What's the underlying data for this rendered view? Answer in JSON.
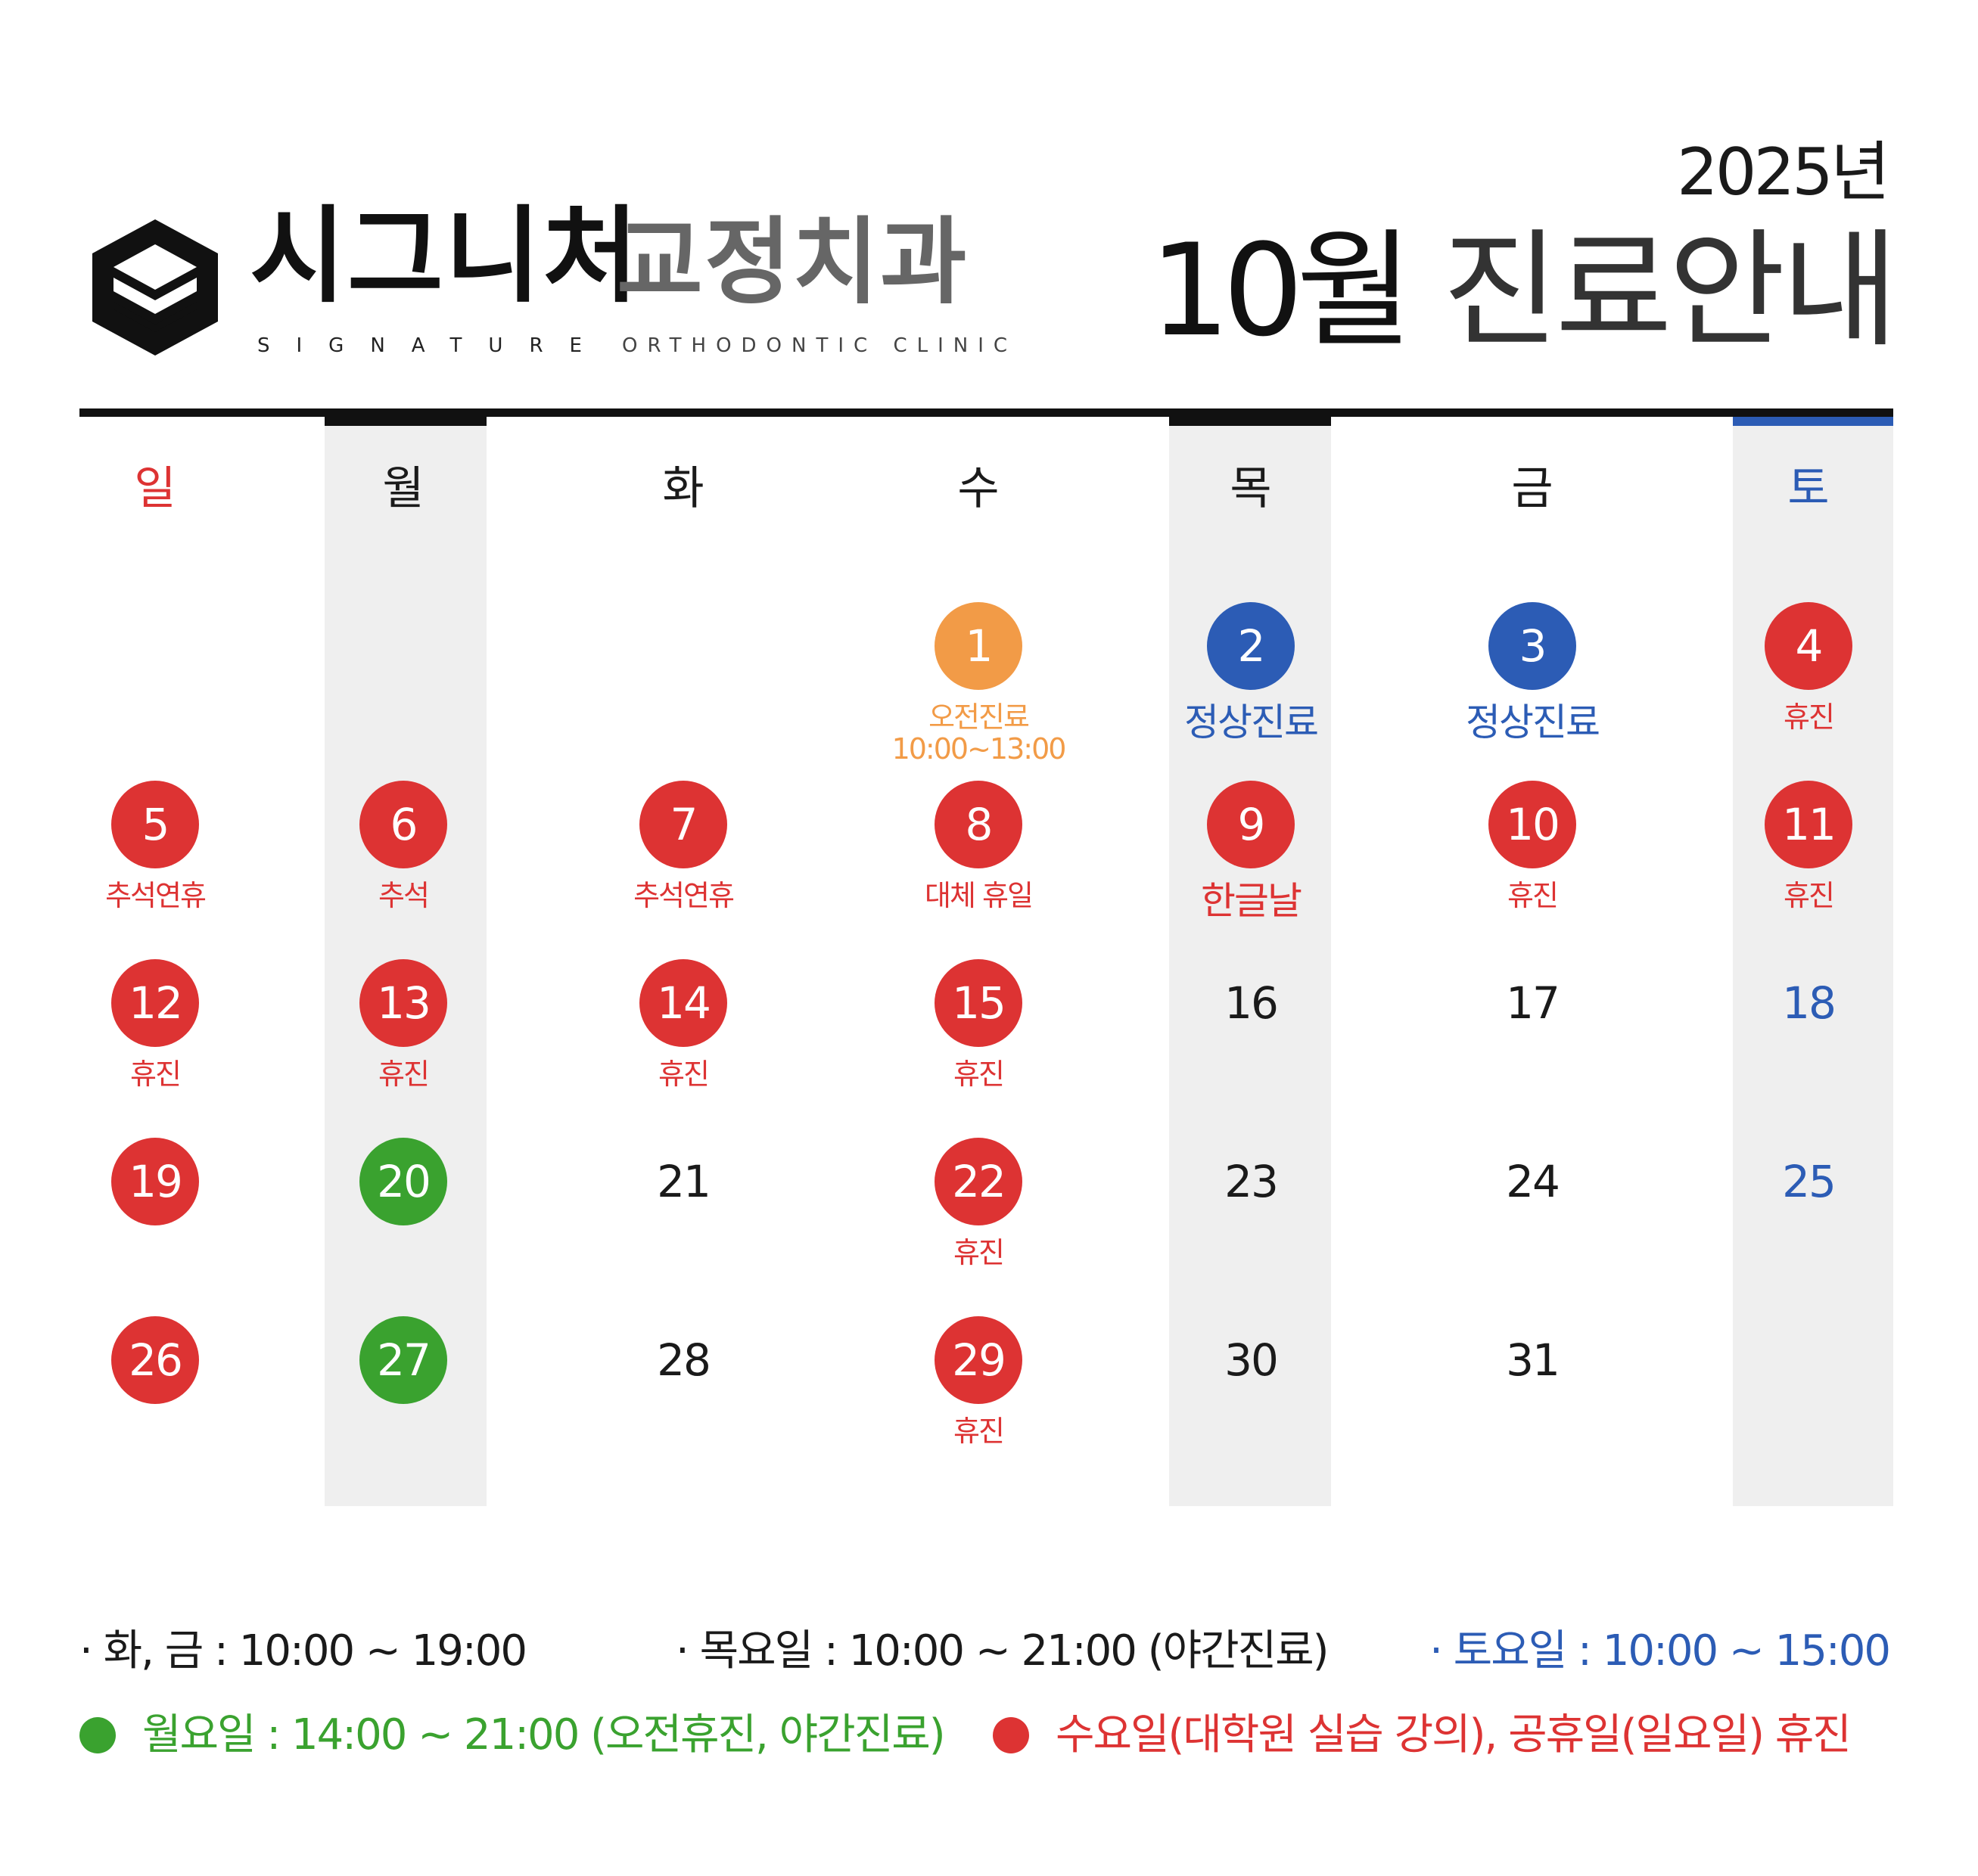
{
  "header": {
    "brand_ko_main": "시그니처",
    "brand_ko_sub": "교정치과",
    "brand_en_main": "SIGNATURE",
    "brand_en_sub": "ORTHODONTIC CLINIC",
    "year": "2025년",
    "title_month": "10월",
    "title_text": "진료안내",
    "logo_icon": "signature-s-logo"
  },
  "colors": {
    "red": "#dd3333",
    "orange": "#f29b47",
    "blue": "#2c5cb5",
    "green": "#3aa22f",
    "shade": "#efefef"
  },
  "calendar": {
    "weekdays": [
      "일",
      "월",
      "화",
      "수",
      "목",
      "금",
      "토"
    ],
    "weeks": [
      [
        null,
        null,
        null,
        {
          "day": "1",
          "style": "orange",
          "note": "오전진료\n10:00~13:00",
          "note_color": "orange"
        },
        {
          "day": "2",
          "style": "blue",
          "note": "정상진료",
          "note_color": "blue",
          "note_large": true
        },
        {
          "day": "3",
          "style": "blue",
          "note": "정상진료",
          "note_color": "blue",
          "note_large": true
        },
        {
          "day": "4",
          "style": "red",
          "note": "휴진",
          "note_color": "red"
        }
      ],
      [
        {
          "day": "5",
          "style": "red",
          "note": "추석연휴",
          "note_color": "red"
        },
        {
          "day": "6",
          "style": "red",
          "note": "추석",
          "note_color": "red"
        },
        {
          "day": "7",
          "style": "red",
          "note": "추석연휴",
          "note_color": "red"
        },
        {
          "day": "8",
          "style": "red",
          "note": "대체 휴일",
          "note_color": "red"
        },
        {
          "day": "9",
          "style": "red",
          "note": "한글날",
          "note_color": "red",
          "note_large": true
        },
        {
          "day": "10",
          "style": "red",
          "note": "휴진",
          "note_color": "red"
        },
        {
          "day": "11",
          "style": "red",
          "note": "휴진",
          "note_color": "red"
        }
      ],
      [
        {
          "day": "12",
          "style": "red",
          "note": "휴진",
          "note_color": "red"
        },
        {
          "day": "13",
          "style": "red",
          "note": "휴진",
          "note_color": "red"
        },
        {
          "day": "14",
          "style": "red",
          "note": "휴진",
          "note_color": "red"
        },
        {
          "day": "15",
          "style": "red",
          "note": "휴진",
          "note_color": "red"
        },
        {
          "day": "16",
          "style": "plain"
        },
        {
          "day": "17",
          "style": "plain"
        },
        {
          "day": "18",
          "style": "plain-blue"
        }
      ],
      [
        {
          "day": "19",
          "style": "red"
        },
        {
          "day": "20",
          "style": "green"
        },
        {
          "day": "21",
          "style": "plain"
        },
        {
          "day": "22",
          "style": "red",
          "note": "휴진",
          "note_color": "red"
        },
        {
          "day": "23",
          "style": "plain"
        },
        {
          "day": "24",
          "style": "plain"
        },
        {
          "day": "25",
          "style": "plain-blue"
        }
      ],
      [
        {
          "day": "26",
          "style": "red"
        },
        {
          "day": "27",
          "style": "green"
        },
        {
          "day": "28",
          "style": "plain"
        },
        {
          "day": "29",
          "style": "red",
          "note": "휴진",
          "note_color": "red"
        },
        {
          "day": "30",
          "style": "plain"
        },
        {
          "day": "31",
          "style": "plain"
        },
        null
      ]
    ]
  },
  "legend": {
    "tue_fri": "· 화, 금 : 10:00 ~ 19:00",
    "thu": "· 목요일 : 10:00 ~ 21:00 (야간진료)",
    "sat": "· 토요일 : 10:00 ~ 15:00",
    "mon": "월요일 : 14:00 ~ 21:00 (오전휴진, 야간진료)",
    "wed_holiday": "수요일(대학원 실습 강의), 공휴일(일요일) 휴진"
  }
}
